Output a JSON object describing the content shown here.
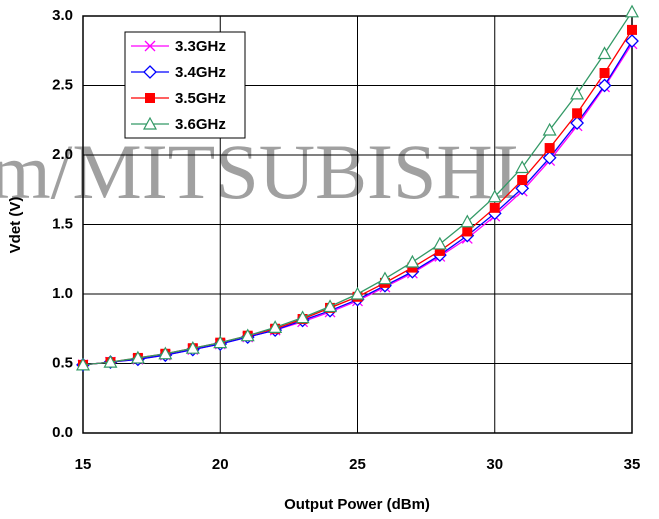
{
  "chart_data": {
    "type": "line",
    "watermark": "m/MITSUBISHI",
    "xlabel": "Output Power (dBm)",
    "ylabel": "Vdet (V)",
    "x": [
      15,
      16,
      17,
      18,
      19,
      20,
      21,
      22,
      23,
      24,
      25,
      26,
      27,
      28,
      29,
      30,
      31,
      32,
      33,
      34,
      35
    ],
    "series": [
      {
        "name": "3.3GHz",
        "color": "#ff00ff",
        "marker": "x",
        "values": [
          0.49,
          0.51,
          0.53,
          0.56,
          0.6,
          0.64,
          0.69,
          0.74,
          0.8,
          0.87,
          0.95,
          1.05,
          1.15,
          1.27,
          1.4,
          1.56,
          1.74,
          1.96,
          2.21,
          2.49,
          2.8
        ]
      },
      {
        "name": "3.4GHz",
        "color": "#0000ff",
        "marker": "diamond",
        "values": [
          0.49,
          0.51,
          0.53,
          0.56,
          0.6,
          0.64,
          0.69,
          0.74,
          0.81,
          0.88,
          0.96,
          1.06,
          1.16,
          1.28,
          1.42,
          1.58,
          1.76,
          1.98,
          2.23,
          2.5,
          2.82
        ]
      },
      {
        "name": "3.5GHz",
        "color": "#ff0000",
        "marker": "square",
        "values": [
          0.49,
          0.51,
          0.54,
          0.57,
          0.61,
          0.65,
          0.7,
          0.75,
          0.82,
          0.9,
          0.98,
          1.08,
          1.19,
          1.31,
          1.45,
          1.62,
          1.82,
          2.05,
          2.3,
          2.59,
          2.9
        ]
      },
      {
        "name": "3.6GHz",
        "color": "#339966",
        "marker": "triangle",
        "values": [
          0.49,
          0.51,
          0.54,
          0.57,
          0.61,
          0.65,
          0.7,
          0.76,
          0.83,
          0.91,
          1.0,
          1.11,
          1.23,
          1.36,
          1.52,
          1.7,
          1.91,
          2.18,
          2.44,
          2.73,
          3.03
        ]
      }
    ],
    "xlim": [
      15,
      35
    ],
    "xticks": [
      15,
      20,
      25,
      30,
      35
    ],
    "ylim": [
      0,
      3
    ],
    "yticks": [
      {
        "value": 0,
        "label": "0.0"
      },
      {
        "value": 0.5,
        "label": "0.5"
      },
      {
        "value": 1,
        "label": "1.0"
      },
      {
        "value": 1.5,
        "label": "1.5"
      },
      {
        "value": 2,
        "label": "2.0"
      },
      {
        "value": 2.5,
        "label": "2.5"
      },
      {
        "value": 3,
        "label": "3.0"
      }
    ],
    "grid": true,
    "legend": "upper left"
  }
}
